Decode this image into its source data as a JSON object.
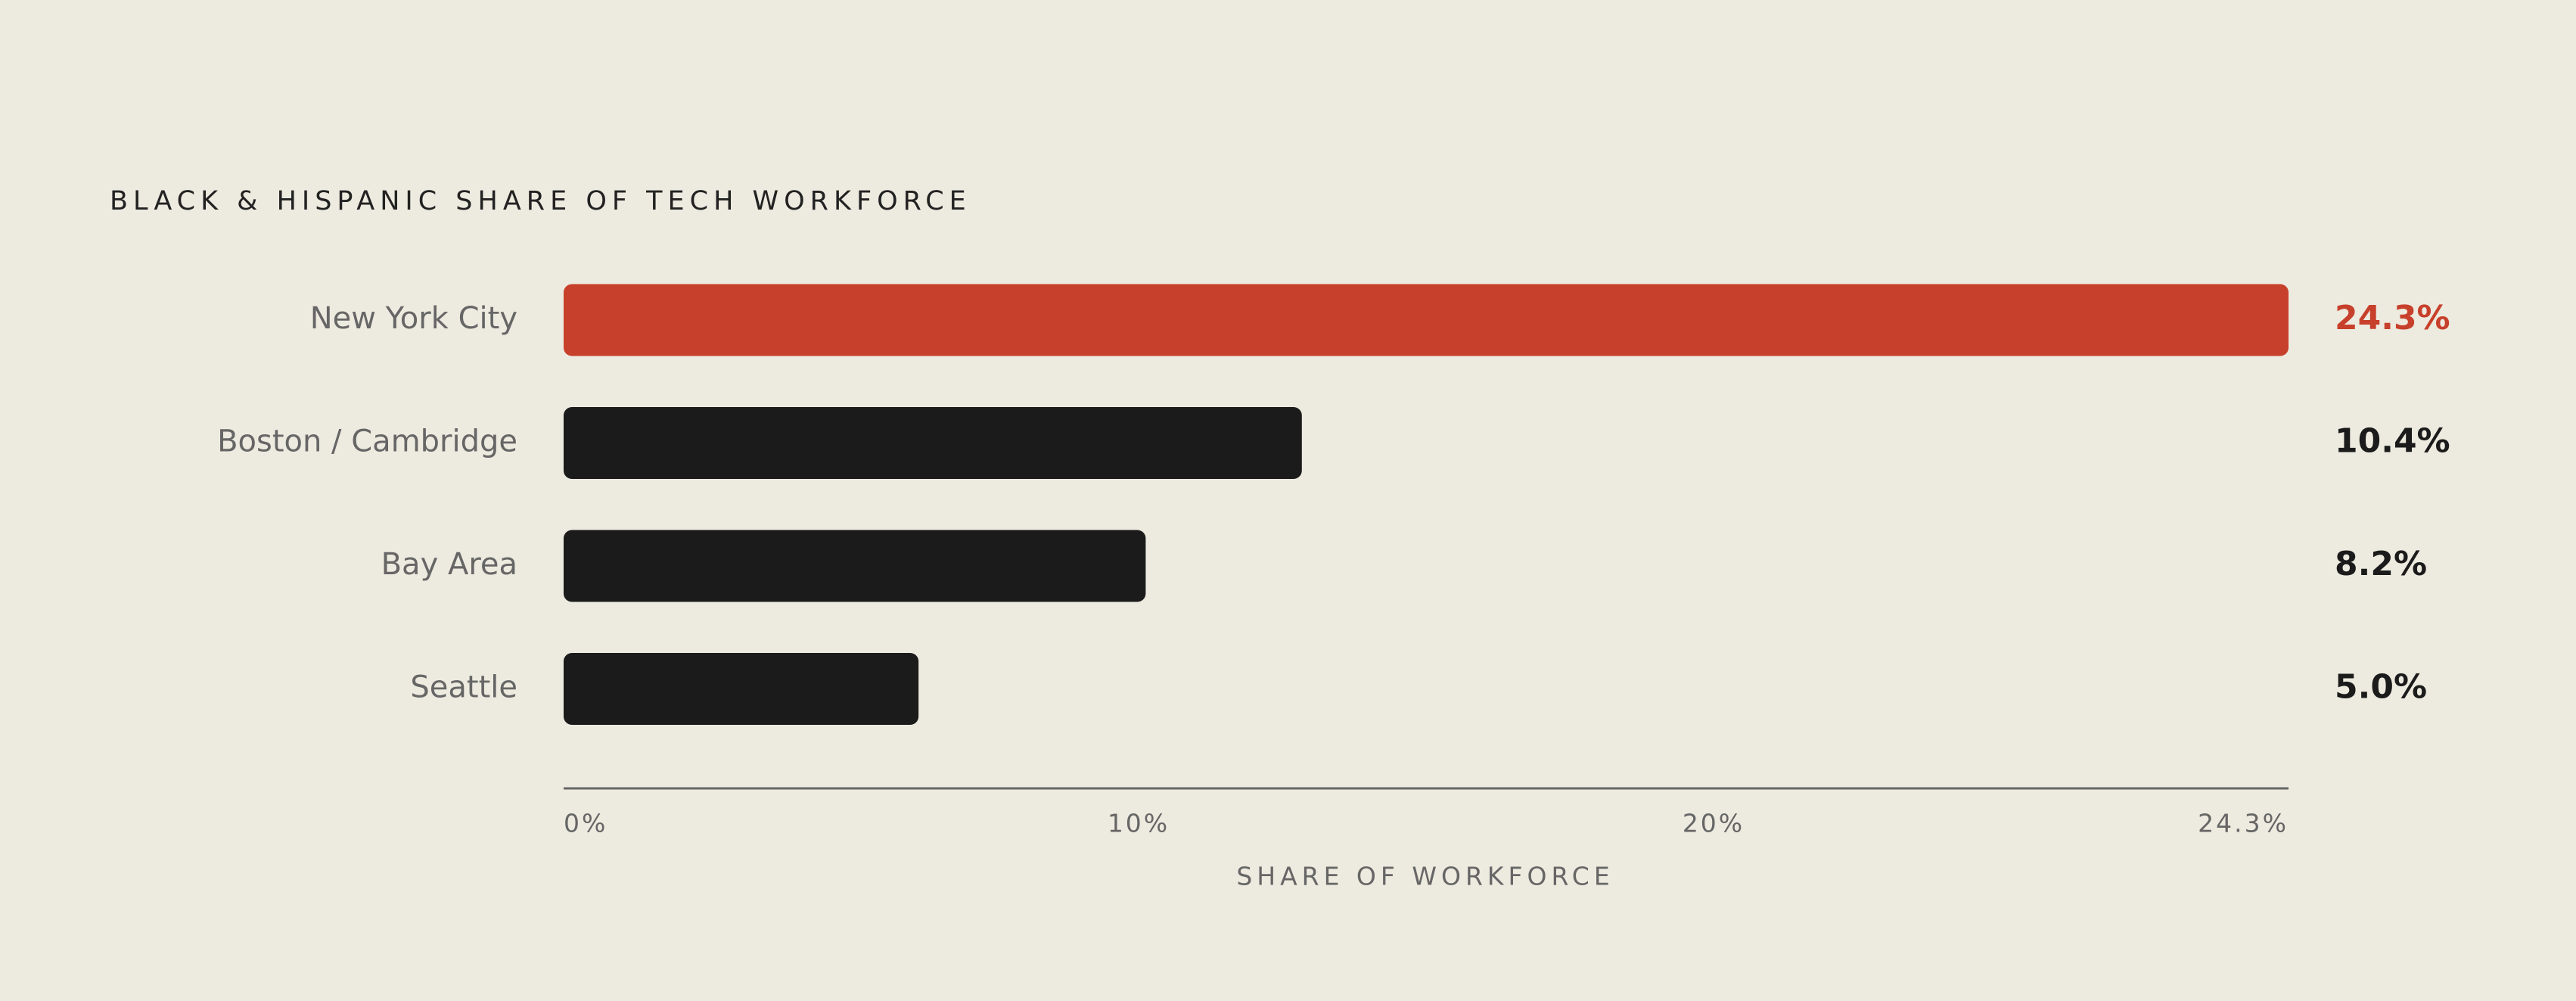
{
  "chart_data": {
    "type": "bar",
    "orientation": "horizontal",
    "title": "BLACK & HISPANIC SHARE OF TECH WORKFORCE",
    "x_label": "SHARE OF WORKFORCE",
    "categories": [
      "New York City",
      "Boston / Cambridge",
      "Bay Area",
      "Seattle"
    ],
    "values": [
      24.3,
      10.4,
      8.2,
      5.0
    ],
    "value_labels": [
      "24.3%",
      "10.4%",
      "8.2%",
      "5.0%"
    ],
    "colors": [
      "#c7402b",
      "#1b1b1b",
      "#1b1b1b",
      "#1b1b1b"
    ],
    "xlim": [
      0,
      24.3
    ],
    "xticks": [
      {
        "value": 0,
        "label": "0%"
      },
      {
        "value": 10,
        "label": "10%"
      },
      {
        "value": 20,
        "label": "20%"
      },
      {
        "value": 24.3,
        "label": "24.3%"
      }
    ],
    "grid": false
  }
}
